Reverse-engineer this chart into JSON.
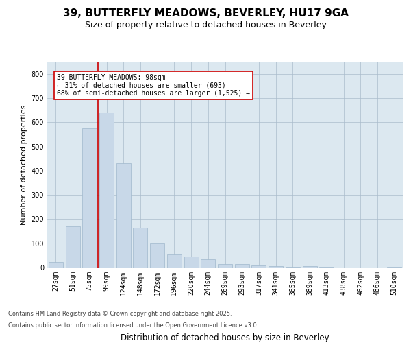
{
  "title": "39, BUTTERFLY MEADOWS, BEVERLEY, HU17 9GA",
  "subtitle": "Size of property relative to detached houses in Beverley",
  "xlabel": "Distribution of detached houses by size in Beverley",
  "ylabel": "Number of detached properties",
  "categories": [
    "27sqm",
    "51sqm",
    "75sqm",
    "99sqm",
    "124sqm",
    "148sqm",
    "172sqm",
    "196sqm",
    "220sqm",
    "244sqm",
    "269sqm",
    "293sqm",
    "317sqm",
    "341sqm",
    "365sqm",
    "389sqm",
    "413sqm",
    "438sqm",
    "462sqm",
    "486sqm",
    "510sqm"
  ],
  "values": [
    22,
    170,
    575,
    640,
    430,
    165,
    102,
    58,
    46,
    35,
    15,
    13,
    8,
    7,
    3,
    5,
    2,
    1,
    0,
    0,
    2
  ],
  "bar_color": "#c8d8e8",
  "bar_edge_color": "#a0b8cc",
  "vline_color": "#cc0000",
  "annotation_text": "39 BUTTERFLY MEADOWS: 98sqm\n← 31% of detached houses are smaller (693)\n68% of semi-detached houses are larger (1,525) →",
  "annotation_box_color": "#ffffff",
  "annotation_box_edge": "#cc0000",
  "ylim": [
    0,
    850
  ],
  "yticks": [
    0,
    100,
    200,
    300,
    400,
    500,
    600,
    700,
    800
  ],
  "plot_background": "#dce8f0",
  "footer_line1": "Contains HM Land Registry data © Crown copyright and database right 2025.",
  "footer_line2": "Contains public sector information licensed under the Open Government Licence v3.0.",
  "title_fontsize": 11,
  "subtitle_fontsize": 9,
  "xlabel_fontsize": 8.5,
  "ylabel_fontsize": 8,
  "tick_fontsize": 7,
  "annot_fontsize": 7
}
